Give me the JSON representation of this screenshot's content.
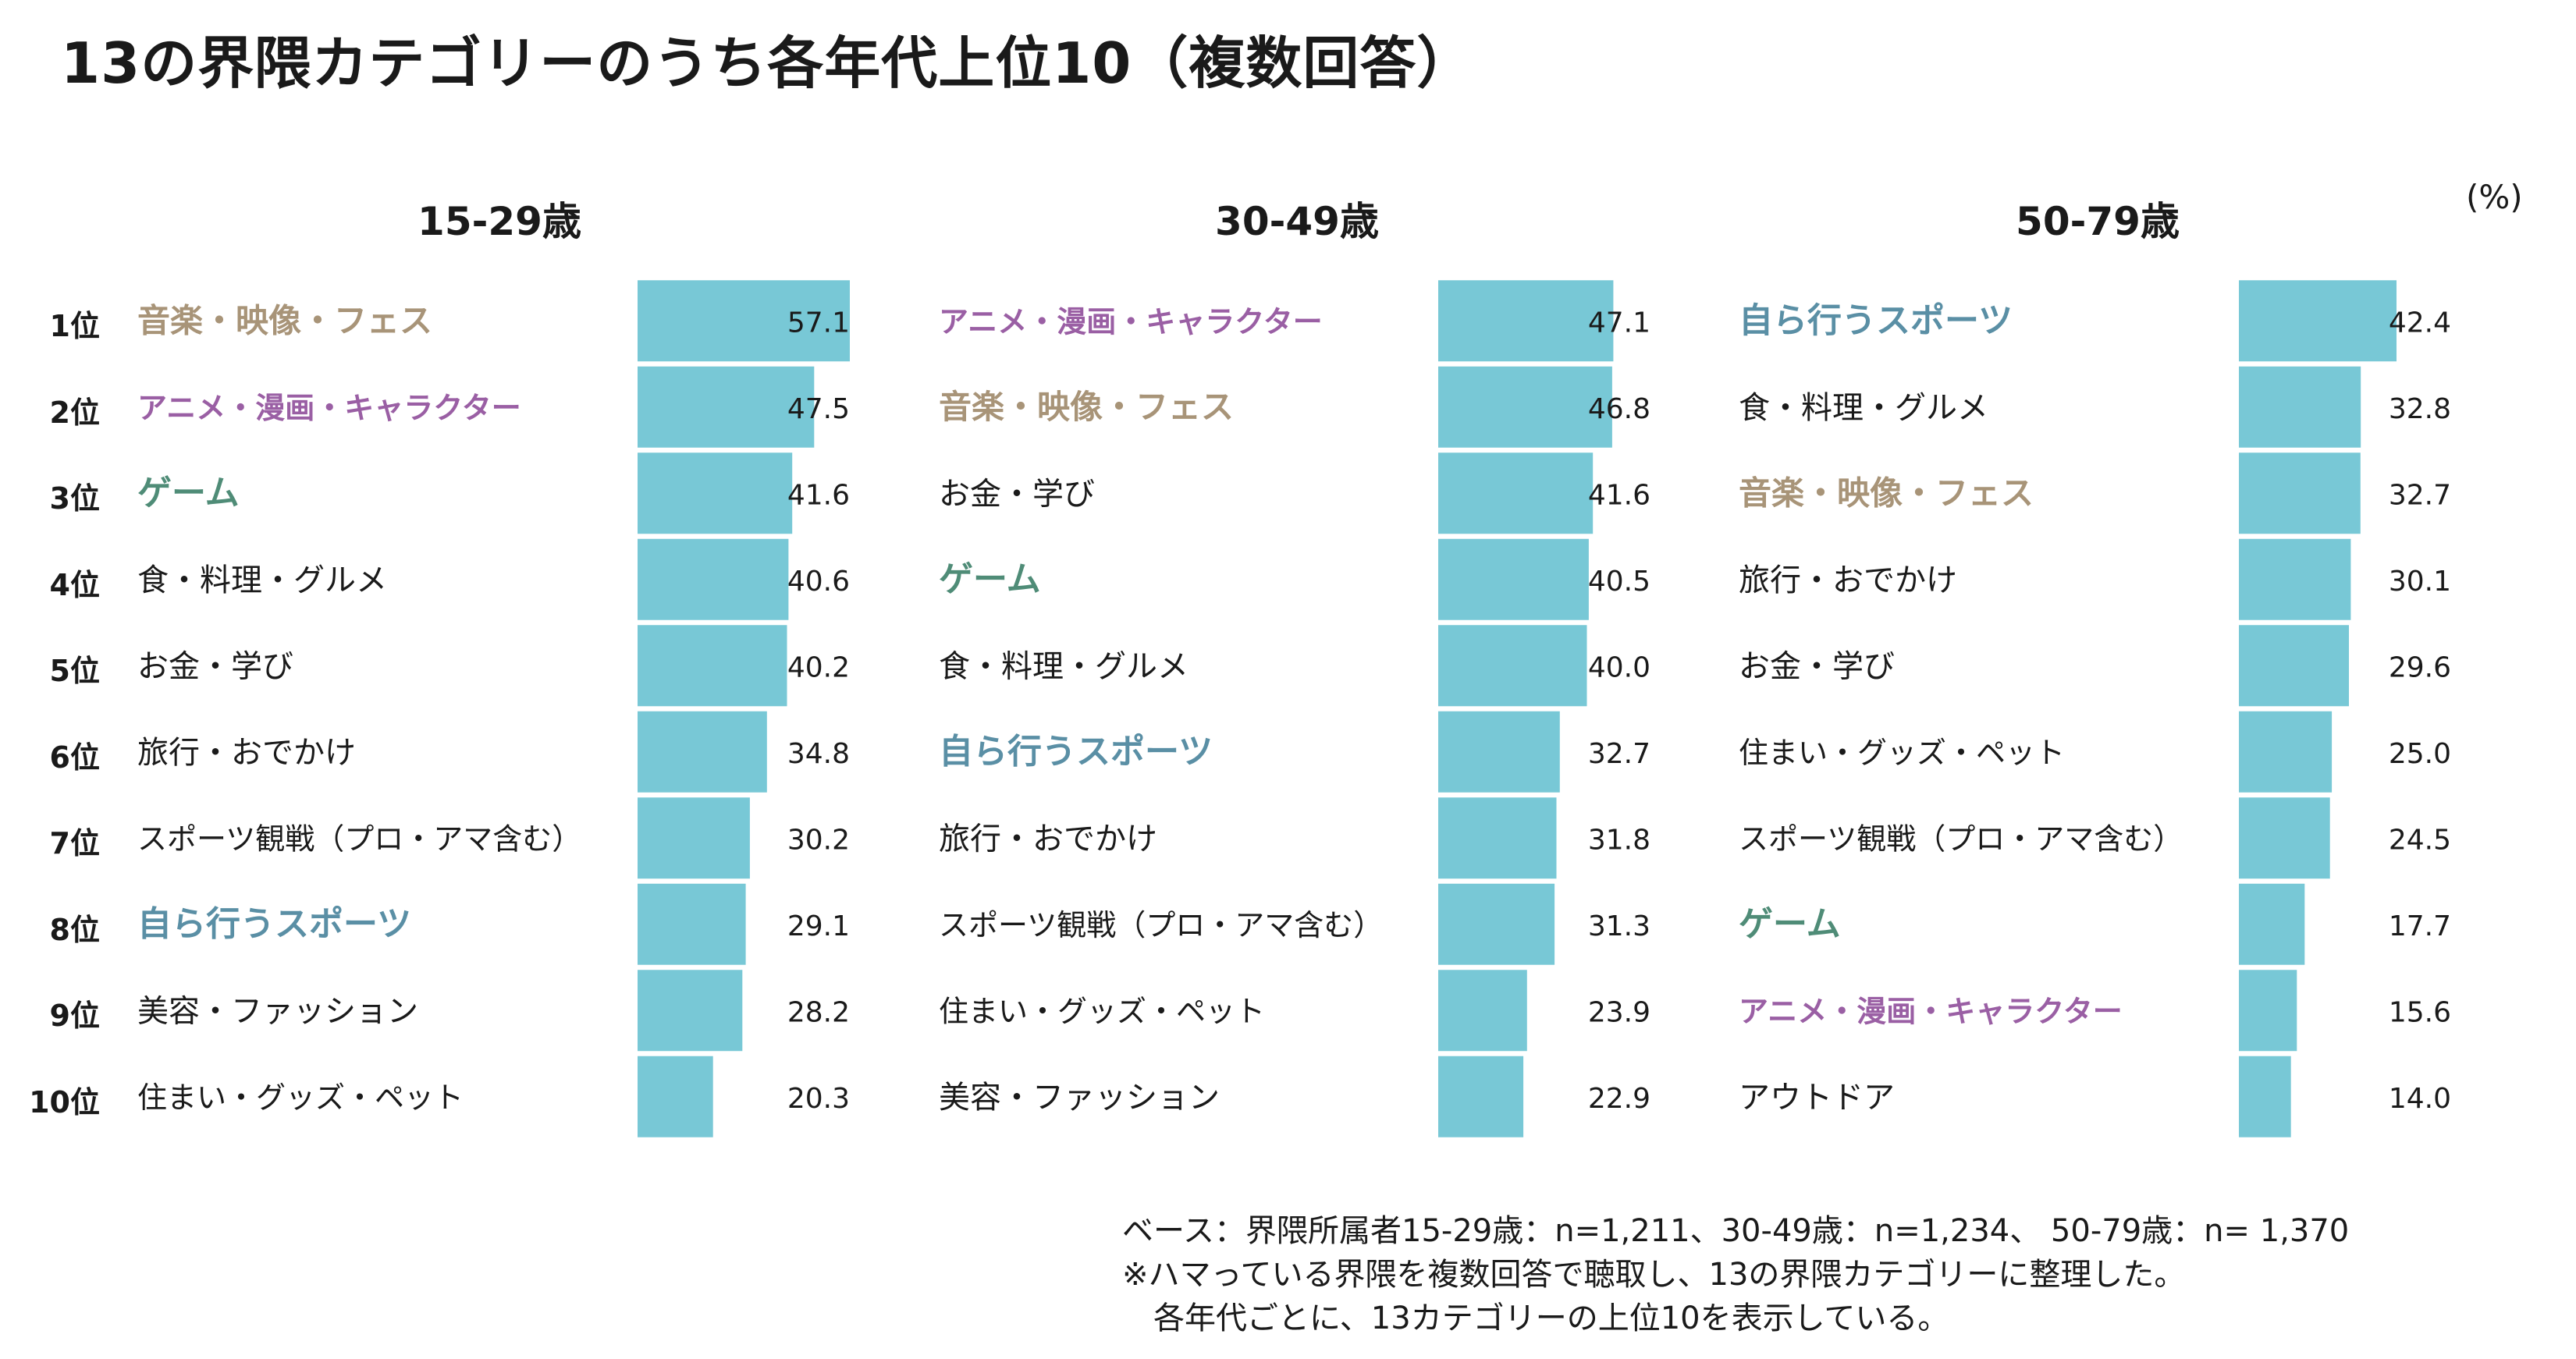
{
  "title": "13の界隈カテゴリーのうち各年代上位10（複数回答）",
  "unit": "(%)",
  "ranks": [
    "1位",
    "2位",
    "3位",
    "4位",
    "5位",
    "6位",
    "7位",
    "8位",
    "9位",
    "10位"
  ],
  "colors": {
    "bar": "#78c8d6",
    "text": "#1a1a1a",
    "music": "#a89478",
    "anime": "#9a5fa4",
    "game": "#4f8c77",
    "sports": "#5a8fa5"
  },
  "chart_data": [
    {
      "type": "bar",
      "title": "15-29歳",
      "xlim": [
        0,
        60
      ],
      "categories": [
        "音楽・映像・フェス",
        "アニメ・漫画・キャラクター",
        "ゲーム",
        "食・料理・グルメ",
        "お金・学び",
        "旅行・おでかけ",
        "スポーツ観戦（プロ・アマ含む）",
        "自ら行うスポーツ",
        "美容・ファッション",
        "住まい・グッズ・ペット"
      ],
      "values": [
        57.1,
        47.5,
        41.6,
        40.6,
        40.2,
        34.8,
        30.2,
        29.1,
        28.2,
        20.3
      ],
      "highlight": [
        "music",
        "anime",
        "game",
        null,
        null,
        null,
        null,
        "sports",
        null,
        null
      ]
    },
    {
      "type": "bar",
      "title": "30-49歳",
      "xlim": [
        0,
        60
      ],
      "categories": [
        "アニメ・漫画・キャラクター",
        "音楽・映像・フェス",
        "お金・学び",
        "ゲーム",
        "食・料理・グルメ",
        "自ら行うスポーツ",
        "旅行・おでかけ",
        "スポーツ観戦（プロ・アマ含む）",
        "住まい・グッズ・ペット",
        "美容・ファッション"
      ],
      "values": [
        47.1,
        46.8,
        41.6,
        40.5,
        40.0,
        32.7,
        31.8,
        31.3,
        23.9,
        22.9
      ],
      "highlight": [
        "anime",
        "music",
        null,
        "game",
        null,
        "sports",
        null,
        null,
        null,
        null
      ]
    },
    {
      "type": "bar",
      "title": "50-79歳",
      "xlim": [
        0,
        60
      ],
      "categories": [
        "自ら行うスポーツ",
        "食・料理・グルメ",
        "音楽・映像・フェス",
        "旅行・おでかけ",
        "お金・学び",
        "住まい・グッズ・ペット",
        "スポーツ観戦（プロ・アマ含む）",
        "ゲーム",
        "アニメ・漫画・キャラクター",
        "アウトドア"
      ],
      "values": [
        42.4,
        32.8,
        32.7,
        30.1,
        29.6,
        25.0,
        24.5,
        17.7,
        15.6,
        14.0
      ],
      "highlight": [
        "sports",
        null,
        "music",
        null,
        null,
        null,
        null,
        "game",
        "anime",
        null
      ]
    }
  ],
  "footnote": {
    "line1": "ベース：界隈所属者15-29歳：n=1,211、30-49歳：n=1,234、 50-79歳：n= 1,370",
    "line2": "※ハマっている界隈を複数回答で聴取し、13の界隈カテゴリーに整理した。",
    "line3": "　各年代ごとに、13カテゴリーの上位10を表示している。"
  }
}
